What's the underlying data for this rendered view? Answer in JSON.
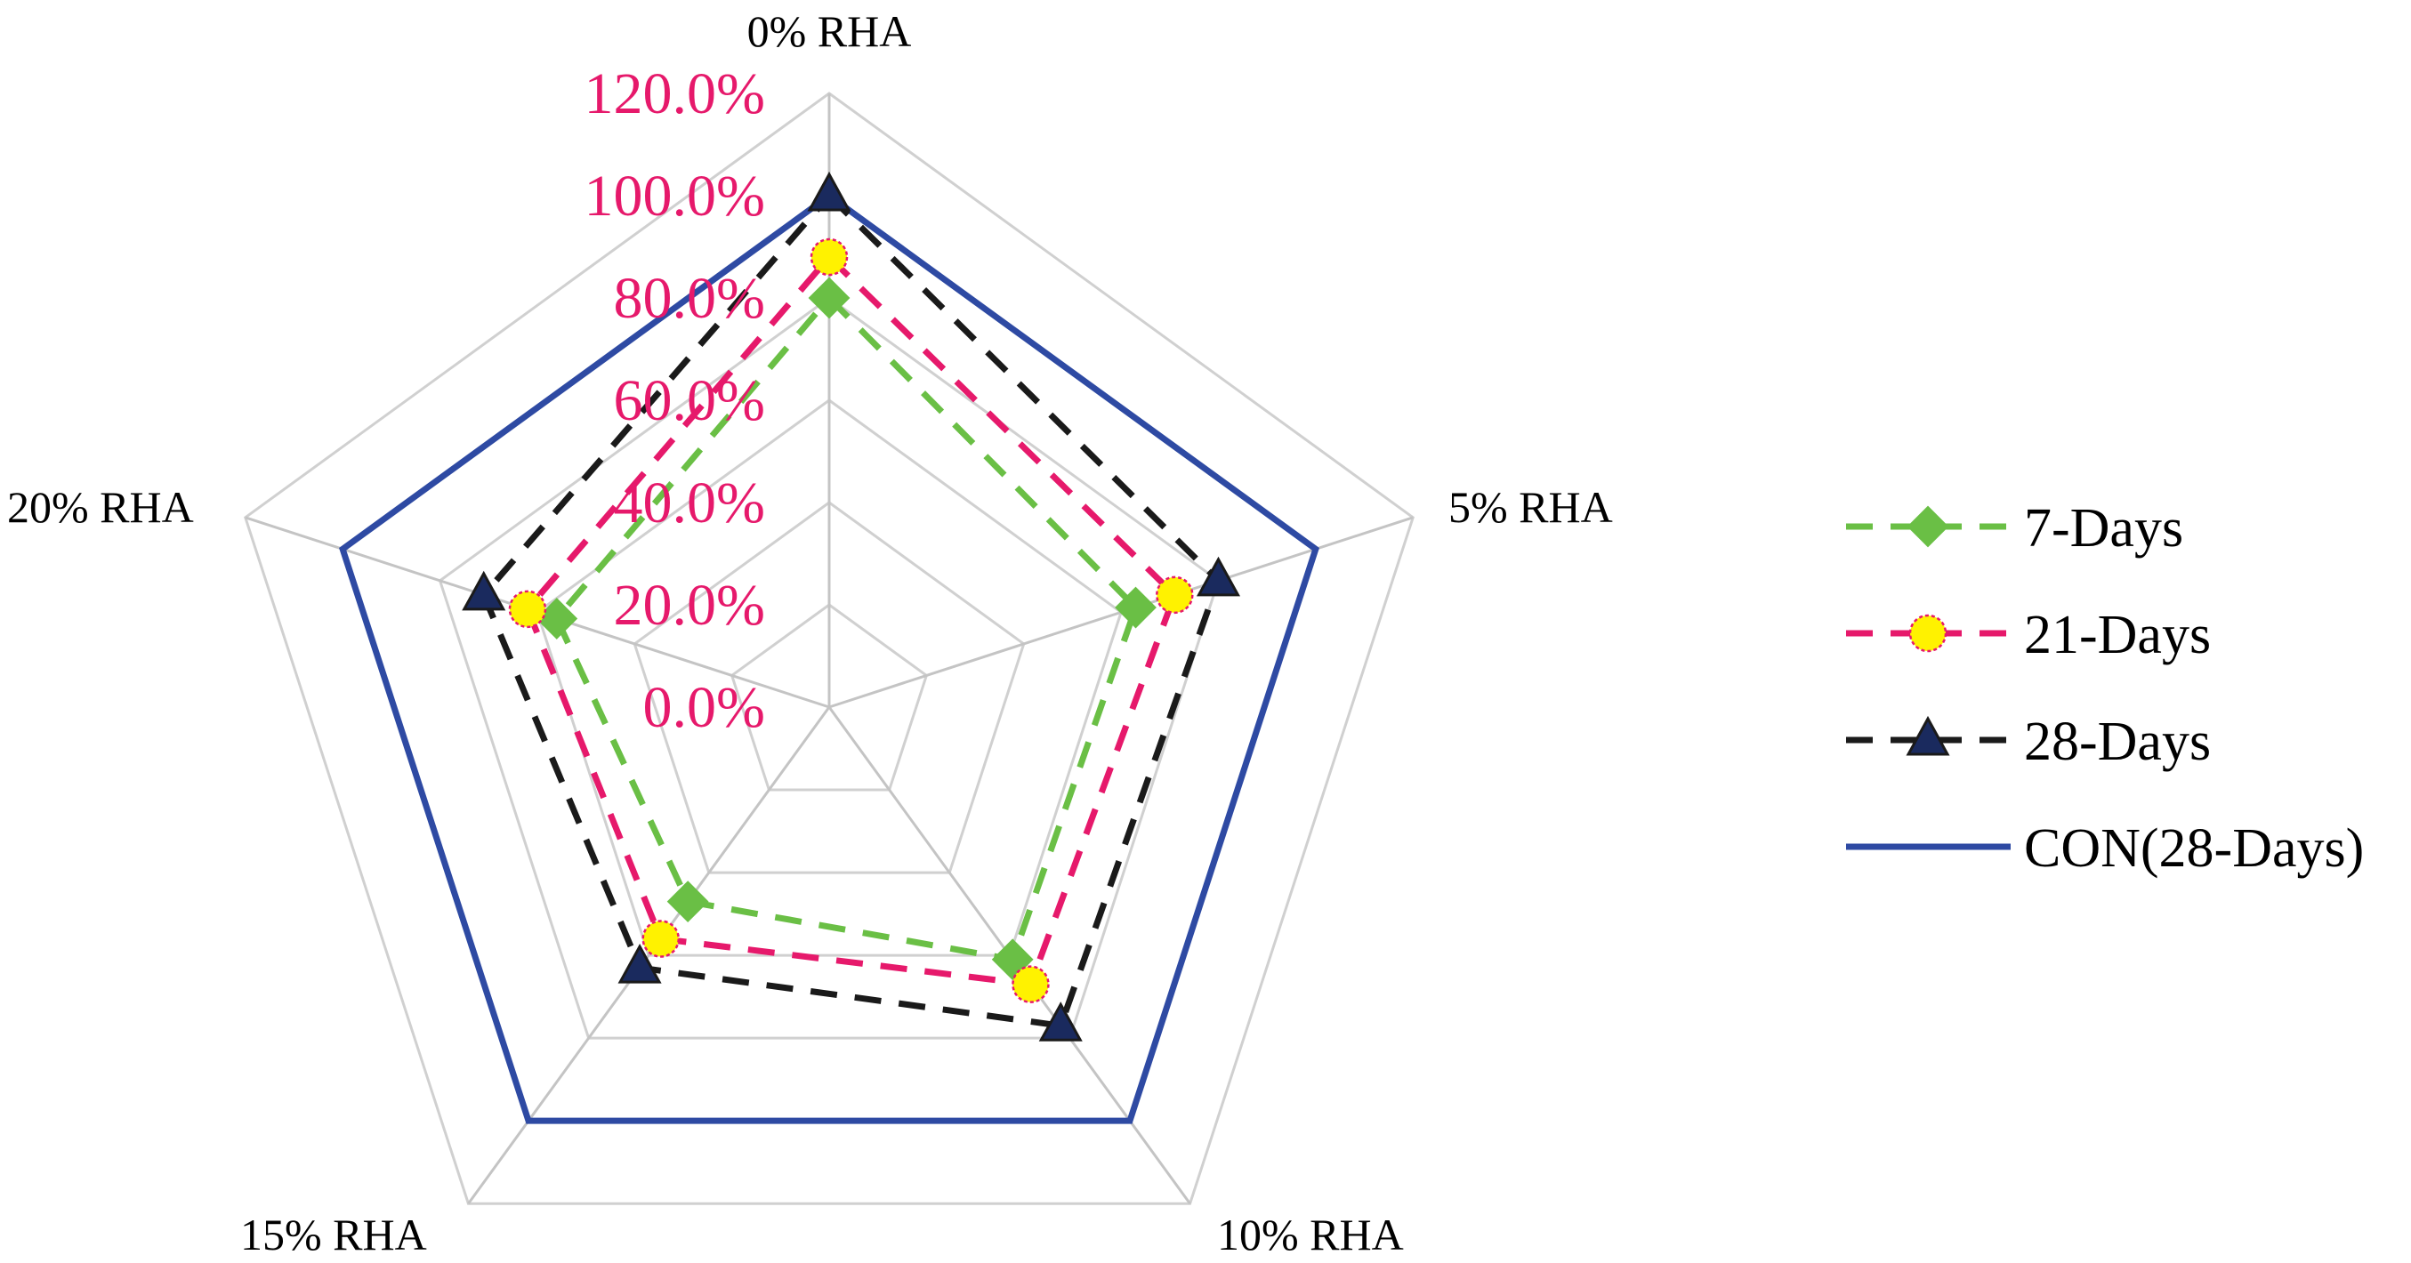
{
  "chart_data": {
    "type": "radar",
    "categories": [
      "0% RHA",
      "5% RHA",
      "10% RHA",
      "15% RHA",
      "20% RHA"
    ],
    "r_ticks": [
      "0.0%",
      "20.0%",
      "40.0%",
      "60.0%",
      "80.0%",
      "100.0%",
      "120.0%"
    ],
    "rlim": [
      0,
      120
    ],
    "grid": true,
    "legend_position": "right",
    "series": [
      {
        "name": "7-Days",
        "values": [
          80,
          63,
          61,
          47,
          56
        ],
        "color": "#6abf45",
        "line": "dashed",
        "marker": "diamond"
      },
      {
        "name": "21-Days",
        "values": [
          88,
          71,
          67,
          56,
          62
        ],
        "color": "#e6196b",
        "line": "dashed",
        "marker": "circle",
        "marker_fill": "#fff200"
      },
      {
        "name": "28-Days",
        "values": [
          100,
          80,
          77,
          63,
          71
        ],
        "color": "#1a1a1a",
        "line": "dashed",
        "marker": "triangle",
        "marker_fill": "#1a2a5e"
      },
      {
        "name": "CON(28-Days)",
        "values": [
          100,
          100,
          100,
          100,
          100
        ],
        "color": "#2e4aa3",
        "line": "solid",
        "marker": "none"
      }
    ]
  }
}
